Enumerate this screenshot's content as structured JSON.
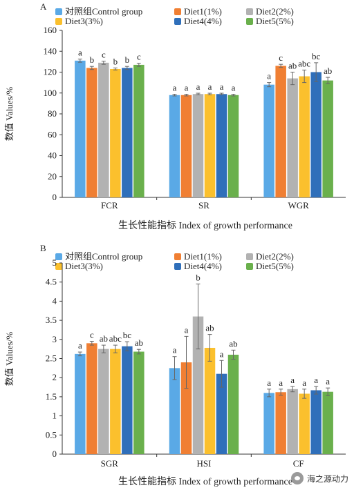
{
  "watermark": {
    "text": "海之源动力",
    "icon": "wechat-icon"
  },
  "chart_data": [
    {
      "type": "bar",
      "panel_label": "A",
      "categories": [
        "FCR",
        "SR",
        "WGR"
      ],
      "xlabel": "生长性能指标 Index of growth performance",
      "ylabel": "数值 Values/%",
      "ylim": [
        0,
        160
      ],
      "yticks": [
        "0",
        "20",
        "40",
        "60",
        "80",
        "100",
        "120",
        "140",
        "160"
      ],
      "legend_position": "top",
      "series": [
        {
          "name": "对照组Control group",
          "color": "#5aa9e6",
          "values": [
            131,
            98,
            108
          ],
          "errors": [
            1.5,
            0.8,
            2
          ],
          "letters": [
            "a",
            "a",
            "a"
          ]
        },
        {
          "name": "Diet1(1%)",
          "color": "#f07f33",
          "values": [
            124,
            98,
            126
          ],
          "errors": [
            1.5,
            0.8,
            1.5
          ],
          "letters": [
            "b",
            "a",
            "c"
          ]
        },
        {
          "name": "Diet2(2%)",
          "color": "#b2b2b2",
          "values": [
            129,
            99,
            114
          ],
          "errors": [
            1.5,
            0.8,
            6
          ],
          "letters": [
            "c",
            "a",
            "ab"
          ]
        },
        {
          "name": "Diet3(3%)",
          "color": "#fbc02d",
          "values": [
            123,
            99,
            116
          ],
          "errors": [
            1,
            0.8,
            6
          ],
          "letters": [
            "b",
            "a",
            "abc"
          ]
        },
        {
          "name": "Diet4(4%)",
          "color": "#2f6fba",
          "values": [
            124,
            99,
            120
          ],
          "errors": [
            1.5,
            0.8,
            9
          ],
          "letters": [
            "b",
            "a",
            "bc"
          ]
        },
        {
          "name": "Diet5(5%)",
          "color": "#6ab04c",
          "values": [
            127,
            98,
            112
          ],
          "errors": [
            1.5,
            0.8,
            3
          ],
          "letters": [
            "c",
            "a",
            "ab"
          ]
        }
      ]
    },
    {
      "type": "bar",
      "panel_label": "B",
      "categories": [
        "SGR",
        "HSI",
        "CF"
      ],
      "xlabel": "生长性能指标 Index of growth performance",
      "ylabel": "数值 Values/%",
      "ylim": [
        0,
        5
      ],
      "yticks": [
        "0",
        "0.5",
        "1",
        "1.5",
        "2",
        "2.5",
        "3",
        "3.5",
        "4",
        "4.5",
        "5"
      ],
      "legend_position": "top",
      "series": [
        {
          "name": "对照组Control group",
          "color": "#5aa9e6",
          "values": [
            2.62,
            2.25,
            1.6
          ],
          "errors": [
            0.05,
            0.3,
            0.1
          ],
          "letters": [
            "a",
            "a",
            "a"
          ]
        },
        {
          "name": "Diet1(1%)",
          "color": "#f07f33",
          "values": [
            2.9,
            2.4,
            1.62
          ],
          "errors": [
            0.05,
            0.68,
            0.08
          ],
          "letters": [
            "c",
            "a",
            "a"
          ]
        },
        {
          "name": "Diet2(2%)",
          "color": "#b2b2b2",
          "values": [
            2.75,
            3.6,
            1.7
          ],
          "errors": [
            0.1,
            0.85,
            0.07
          ],
          "letters": [
            "ab",
            "b",
            "a"
          ]
        },
        {
          "name": "Diet3(3%)",
          "color": "#fbc02d",
          "values": [
            2.75,
            2.78,
            1.58
          ],
          "errors": [
            0.1,
            0.35,
            0.12
          ],
          "letters": [
            "abc",
            "ab",
            "a"
          ]
        },
        {
          "name": "Diet4(4%)",
          "color": "#2f6fba",
          "values": [
            2.82,
            2.1,
            1.67
          ],
          "errors": [
            0.12,
            0.35,
            0.1
          ],
          "letters": [
            "bc",
            "a",
            "a"
          ]
        },
        {
          "name": "Diet5(5%)",
          "color": "#6ab04c",
          "values": [
            2.68,
            2.6,
            1.63
          ],
          "errors": [
            0.06,
            0.12,
            0.1
          ],
          "letters": [
            "ab",
            "ab",
            "a"
          ]
        }
      ]
    }
  ]
}
